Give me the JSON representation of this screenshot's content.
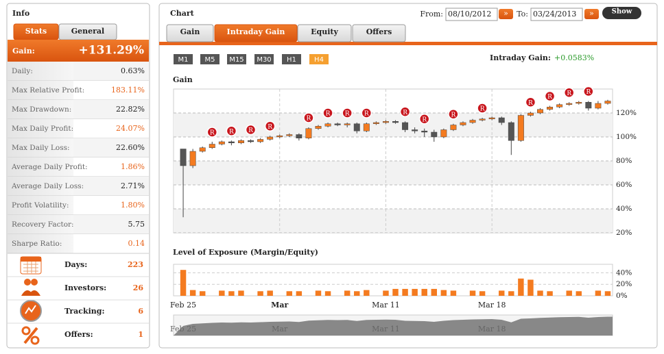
{
  "info": {
    "title": "Info",
    "tabs": [
      "Stats",
      "General"
    ],
    "active_tab": 0,
    "gain": {
      "label": "Gain:",
      "value": "+131.29%"
    },
    "stats": [
      {
        "label": "Daily:",
        "value": "0.63%",
        "color": "#222222"
      },
      {
        "label": "Max Relative Profit:",
        "value": "183.11%",
        "color": "#e8641b"
      },
      {
        "label": "Max Drawdown:",
        "value": "22.82%",
        "color": "#222222"
      },
      {
        "label": "Max Daily Profit:",
        "value": "24.07%",
        "color": "#e8641b"
      },
      {
        "label": "Max Daily Loss:",
        "value": "22.60%",
        "color": "#222222"
      },
      {
        "label": "Average Daily Profit:",
        "value": "1.86%",
        "color": "#e8641b"
      },
      {
        "label": "Average Daily Loss:",
        "value": "2.71%",
        "color": "#222222"
      },
      {
        "label": "Profit Volatility:",
        "value": "1.80%",
        "color": "#e8641b"
      },
      {
        "label": "Recovery Factor:",
        "value": "5.75",
        "color": "#222222"
      },
      {
        "label": "Sharpe Ratio:",
        "value": "0.14",
        "color": "#e8641b"
      }
    ],
    "items": [
      {
        "label": "Days:",
        "value": "223"
      },
      {
        "label": "Investors:",
        "value": "26"
      },
      {
        "label": "Tracking:",
        "value": "6"
      },
      {
        "label": "Offers:",
        "value": "1"
      }
    ]
  },
  "chart_panel": {
    "title": "Chart",
    "from": {
      "label": "From:",
      "value": "08/10/2012"
    },
    "to": {
      "label": "To:",
      "value": "03/24/2013"
    },
    "go": "»",
    "show": "Show",
    "tabs": [
      "Gain",
      "Intraday Gain",
      "Equity",
      "Offers"
    ],
    "active_tab": 1,
    "timeframes": [
      "M1",
      "M5",
      "M15",
      "M30",
      "H1",
      "H4"
    ],
    "active_timeframe": 5,
    "intraday_gain": {
      "label": "Intraday Gain:",
      "value": "+0.0583%"
    }
  },
  "chart_data": [
    {
      "type": "candlestick",
      "title": "Gain",
      "up_color": "#f47b20",
      "down_color": "#555555",
      "open": [
        90,
        76,
        88,
        91,
        94,
        96,
        95,
        97,
        96,
        98,
        100,
        101,
        102,
        99,
        107,
        109,
        111,
        110,
        111,
        105,
        111,
        112,
        113,
        112,
        106,
        105,
        104,
        100,
        106,
        110,
        112,
        114,
        115,
        116,
        112,
        97,
        118,
        120,
        123,
        125,
        127,
        128,
        129,
        124,
        128
      ],
      "high": [
        90,
        90,
        92,
        96,
        97,
        97,
        98,
        98,
        99,
        101,
        102,
        103,
        103,
        108,
        110,
        112,
        112,
        112,
        112,
        112,
        113,
        114,
        114,
        113,
        108,
        107,
        106,
        107,
        111,
        113,
        115,
        116,
        117,
        117,
        113,
        119,
        121,
        124,
        126,
        128,
        129,
        130,
        130,
        130,
        131
      ],
      "low": [
        33,
        74,
        87,
        90,
        93,
        93,
        94,
        95,
        95,
        97,
        99,
        100,
        97,
        98,
        106,
        108,
        109,
        108,
        103,
        104,
        110,
        111,
        111,
        104,
        103,
        100,
        96,
        99,
        105,
        109,
        111,
        113,
        114,
        110,
        85,
        96,
        117,
        119,
        122,
        124,
        126,
        127,
        122,
        123,
        127
      ],
      "close": [
        76,
        88,
        91,
        94,
        96,
        95,
        97,
        96,
        98,
        100,
        101,
        102,
        99,
        107,
        109,
        111,
        110,
        111,
        105,
        111,
        112,
        113,
        112,
        106,
        105,
        104,
        100,
        106,
        110,
        112,
        114,
        115,
        116,
        112,
        97,
        118,
        120,
        123,
        125,
        127,
        128,
        129,
        124,
        128,
        130
      ],
      "ylim": [
        20,
        140
      ],
      "yticks": [
        {
          "value": 20,
          "label": "20%"
        },
        {
          "value": 40,
          "label": "40%"
        },
        {
          "value": 60,
          "label": "60%"
        },
        {
          "value": 80,
          "label": "80%"
        },
        {
          "value": 100,
          "label": "100%"
        },
        {
          "value": 120,
          "label": "120%"
        }
      ],
      "grid": true,
      "marker_label": "R",
      "markers": [
        3,
        5,
        7,
        9,
        13,
        15,
        17,
        19,
        23,
        25,
        28,
        31,
        36,
        38,
        40,
        42
      ]
    },
    {
      "type": "bar",
      "title": "Level of Exposure (Margin/Equity)",
      "color": "#f47b20",
      "categories": [
        "Feb 25",
        null,
        null,
        null,
        null,
        null,
        null,
        null,
        null,
        null,
        "Mar",
        null,
        null,
        null,
        null,
        null,
        null,
        null,
        null,
        null,
        null,
        "Mar 11",
        null,
        null,
        null,
        null,
        null,
        null,
        null,
        null,
        null,
        null,
        "Mar 18",
        null,
        null,
        null,
        null,
        null,
        null,
        null,
        null,
        null,
        null,
        null,
        null
      ],
      "values": [
        45,
        10,
        8,
        0,
        9,
        8,
        9,
        0,
        8,
        9,
        0,
        8,
        8,
        0,
        9,
        8,
        0,
        9,
        8,
        10,
        0,
        9,
        12,
        12,
        12,
        12,
        12,
        10,
        9,
        0,
        9,
        8,
        0,
        9,
        8,
        30,
        28,
        9,
        8,
        0,
        9,
        8,
        0,
        9,
        8
      ],
      "ylim": [
        0,
        50
      ],
      "yticks": [
        {
          "value": 0,
          "label": "0%"
        },
        {
          "value": 20,
          "label": "20%"
        },
        {
          "value": 40,
          "label": "40%"
        }
      ]
    }
  ]
}
